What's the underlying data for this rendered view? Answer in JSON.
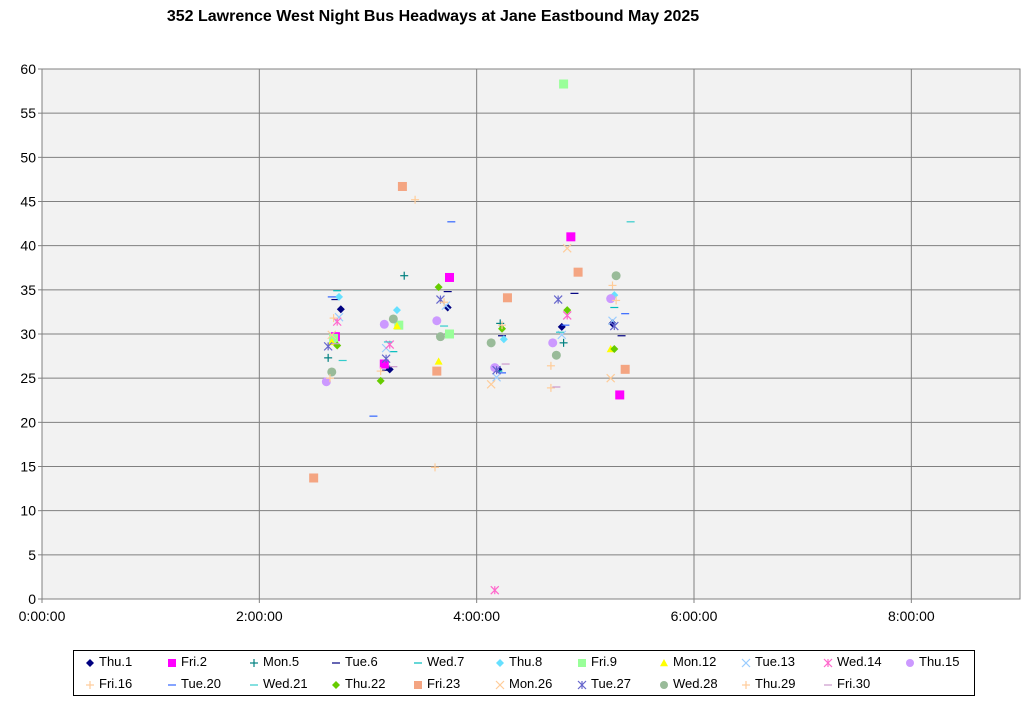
{
  "chart_data": {
    "type": "scatter",
    "title": "352 Lawrence West Night Bus Headways at Jane Eastbound May 2025",
    "xlabel": "",
    "ylabel": "",
    "xlim": [
      "0:00:00",
      "9:00:00"
    ],
    "ylim": [
      0,
      60
    ],
    "x_ticks": [
      "0:00:00",
      "2:00:00",
      "4:00:00",
      "6:00:00",
      "8:00:00"
    ],
    "y_ticks": [
      0,
      5,
      10,
      15,
      20,
      25,
      30,
      35,
      40,
      45,
      50,
      55,
      60
    ],
    "grid": true,
    "legend_position": "bottom",
    "series": [
      {
        "name": "Thu.1",
        "color": "#000080",
        "marker": "diamond",
        "points": [
          [
            "2:45:00",
            32.8
          ],
          [
            "3:12:00",
            26.0
          ],
          [
            "3:44:00",
            33.0
          ],
          [
            "4:12:00",
            26.0
          ],
          [
            "4:47:00",
            30.8
          ],
          [
            "5:15:00",
            31.2
          ]
        ]
      },
      {
        "name": "Fri.2",
        "color": "#ff00ff",
        "marker": "square",
        "points": [
          [
            "2:42:00",
            29.7
          ],
          [
            "3:09:00",
            26.6
          ],
          [
            "3:45:00",
            36.4
          ],
          [
            "4:52:00",
            41.0
          ],
          [
            "5:19:00",
            23.1
          ]
        ]
      },
      {
        "name": "Mon.5",
        "color": "#008080",
        "marker": "plus",
        "points": [
          [
            "2:38:00",
            27.3
          ],
          [
            "3:20:00",
            36.6
          ],
          [
            "4:13:00",
            31.2
          ],
          [
            "4:48:00",
            29.0
          ]
        ]
      },
      {
        "name": "Tue.6",
        "color": "#000080",
        "marker": "dash",
        "points": [
          [
            "2:42:00",
            33.9
          ],
          [
            "3:10:00",
            25.9
          ],
          [
            "3:44:00",
            34.8
          ],
          [
            "4:14:00",
            29.8
          ],
          [
            "4:54:00",
            34.6
          ],
          [
            "5:20:00",
            29.8
          ]
        ]
      },
      {
        "name": "Wed.7",
        "color": "#00bcbc",
        "marker": "dash",
        "points": [
          [
            "2:43:00",
            34.9
          ],
          [
            "3:14:00",
            28.0
          ],
          [
            "4:12:00",
            25.8
          ],
          [
            "5:16:00",
            33.0
          ]
        ]
      },
      {
        "name": "Thu.8",
        "color": "#66e0ff",
        "marker": "diamond",
        "points": [
          [
            "2:44:00",
            34.2
          ],
          [
            "3:16:00",
            32.7
          ],
          [
            "4:15:00",
            29.4
          ],
          [
            "5:16:00",
            34.4
          ]
        ]
      },
      {
        "name": "Fri.9",
        "color": "#99ff99",
        "marker": "square",
        "points": [
          [
            "2:41:00",
            29.5
          ],
          [
            "3:17:00",
            31.0
          ],
          [
            "3:45:00",
            30.0
          ],
          [
            "4:48:00",
            58.3
          ]
        ]
      },
      {
        "name": "Mon.12",
        "color": "#ffff00",
        "marker": "triangle",
        "points": [
          [
            "2:40:00",
            29.1
          ],
          [
            "3:16:00",
            30.9
          ],
          [
            "3:39:00",
            26.9
          ],
          [
            "5:14:00",
            28.3
          ]
        ]
      },
      {
        "name": "Tue.13",
        "color": "#99ccff",
        "marker": "x",
        "points": [
          [
            "2:44:00",
            31.9
          ],
          [
            "3:10:00",
            28.4
          ],
          [
            "3:43:00",
            33.2
          ],
          [
            "4:11:00",
            25.1
          ],
          [
            "4:47:00",
            29.9
          ],
          [
            "5:15:00",
            31.5
          ]
        ]
      },
      {
        "name": "Wed.14",
        "color": "#ff66cc",
        "marker": "star",
        "points": [
          [
            "2:43:00",
            31.4
          ],
          [
            "3:12:00",
            28.8
          ],
          [
            "4:10:00",
            1.0
          ],
          [
            "4:50:00",
            32.1
          ]
        ]
      },
      {
        "name": "Thu.15",
        "color": "#cc99ff",
        "marker": "circle",
        "points": [
          [
            "2:37:00",
            24.6
          ],
          [
            "3:09:00",
            31.1
          ],
          [
            "3:38:00",
            31.5
          ],
          [
            "4:10:00",
            26.2
          ],
          [
            "4:42:00",
            29.0
          ],
          [
            "5:14:00",
            34.0
          ]
        ]
      },
      {
        "name": "Fri.16",
        "color": "#ffcc99",
        "marker": "plus",
        "points": [
          [
            "2:41:00",
            31.8
          ],
          [
            "3:26:00",
            45.2
          ],
          [
            "3:37:00",
            14.9
          ],
          [
            "4:41:00",
            26.4
          ],
          [
            "5:17:00",
            33.8
          ]
        ]
      },
      {
        "name": "Tue.20",
        "color": "#3366ff",
        "marker": "dash",
        "points": [
          [
            "2:40:00",
            34.2
          ],
          [
            "3:03:00",
            20.7
          ],
          [
            "3:46:00",
            42.7
          ],
          [
            "4:14:00",
            25.6
          ],
          [
            "4:49:00",
            31.0
          ],
          [
            "5:22:00",
            32.3
          ]
        ]
      },
      {
        "name": "Wed.21",
        "color": "#33cccc",
        "marker": "dash",
        "points": [
          [
            "2:46:00",
            27.0
          ],
          [
            "3:11:00",
            29.1
          ],
          [
            "3:42:00",
            30.9
          ],
          [
            "4:46:00",
            30.2
          ],
          [
            "5:25:00",
            42.7
          ]
        ]
      },
      {
        "name": "Thu.22",
        "color": "#66cc00",
        "marker": "diamond",
        "points": [
          [
            "2:43:00",
            28.7
          ],
          [
            "3:07:00",
            24.7
          ],
          [
            "3:39:00",
            35.3
          ],
          [
            "4:14:00",
            30.6
          ],
          [
            "4:50:00",
            32.7
          ],
          [
            "5:16:00",
            28.3
          ]
        ]
      },
      {
        "name": "Fri.23",
        "color": "#f4a582",
        "marker": "square",
        "points": [
          [
            "2:30:00",
            13.7
          ],
          [
            "3:19:00",
            46.7
          ],
          [
            "3:38:00",
            25.8
          ],
          [
            "4:17:00",
            34.1
          ],
          [
            "4:56:00",
            37.0
          ],
          [
            "5:22:00",
            26.0
          ]
        ]
      },
      {
        "name": "Mon.26",
        "color": "#ffcc99",
        "marker": "x",
        "points": [
          [
            "2:40:00",
            29.9
          ],
          [
            "4:08:00",
            24.3
          ],
          [
            "4:50:00",
            39.7
          ],
          [
            "5:14:00",
            25.0
          ]
        ]
      },
      {
        "name": "Tue.27",
        "color": "#6666cc",
        "marker": "star",
        "points": [
          [
            "2:38:00",
            28.6
          ],
          [
            "3:10:00",
            27.2
          ],
          [
            "3:40:00",
            33.9
          ],
          [
            "4:11:00",
            25.9
          ],
          [
            "4:45:00",
            33.9
          ],
          [
            "5:16:00",
            30.9
          ]
        ]
      },
      {
        "name": "Wed.28",
        "color": "#99bb99",
        "marker": "circle",
        "points": [
          [
            "2:40:00",
            25.7
          ],
          [
            "3:14:00",
            31.7
          ],
          [
            "3:40:00",
            29.7
          ],
          [
            "4:08:00",
            29.0
          ],
          [
            "4:44:00",
            27.6
          ],
          [
            "5:17:00",
            36.6
          ]
        ]
      },
      {
        "name": "Thu.29",
        "color": "#ffcc99",
        "marker": "plus",
        "points": [
          [
            "2:39:00",
            25.0
          ],
          [
            "3:07:00",
            25.8
          ],
          [
            "3:42:00",
            33.6
          ],
          [
            "4:14:00",
            31.0
          ],
          [
            "4:41:00",
            23.9
          ],
          [
            "5:15:00",
            35.5
          ]
        ]
      },
      {
        "name": "Fri.30",
        "color": "#cc99cc",
        "marker": "dash",
        "points": [
          [
            "2:42:00",
            28.9
          ],
          [
            "3:14:00",
            26.3
          ],
          [
            "4:16:00",
            26.6
          ],
          [
            "4:44:00",
            24.0
          ]
        ]
      }
    ]
  }
}
